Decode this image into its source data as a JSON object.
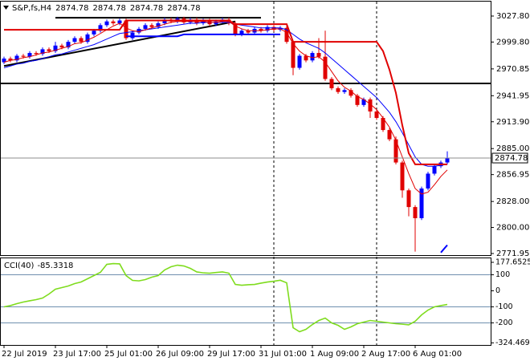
{
  "chart_data": [
    {
      "type": "candlestick",
      "title": "S&P,fs,H4",
      "quote": [
        2874.78,
        2874.78,
        2874.78,
        2874.78
      ],
      "categories": [
        "22 Jul 2019",
        null,
        null,
        null,
        null,
        null,
        null,
        null,
        "23 Jul 17:00",
        null,
        null,
        null,
        null,
        null,
        null,
        null,
        "25 Jul 01:00",
        null,
        null,
        null,
        null,
        null,
        null,
        null,
        "26 Jul 09:00",
        null,
        null,
        null,
        null,
        null,
        null,
        null,
        "29 Jul 17:00",
        null,
        null,
        null,
        null,
        null,
        null,
        null,
        "31 Jul 01:00",
        null,
        null,
        null,
        null,
        null,
        null,
        null,
        "1 Aug 09:00",
        null,
        null,
        null,
        null,
        null,
        null,
        null,
        "2 Aug 17:00",
        null,
        null,
        null,
        null,
        null,
        null,
        null,
        "6 Aug 01:00",
        null,
        null,
        null,
        null,
        null
      ],
      "open": [
        2978,
        2982,
        2980,
        2985,
        2984,
        2988,
        2987,
        2992,
        2990,
        2996,
        2994,
        3000,
        3004,
        3000,
        3008,
        3012,
        3018,
        3022,
        3020,
        3023,
        3004,
        3010,
        3014,
        3018,
        3016,
        3020,
        3024,
        3022,
        3025,
        3021,
        3024,
        3020,
        3023,
        3019,
        3022,
        3024,
        3020,
        3008,
        3012,
        3010,
        3014,
        3012,
        3016,
        3013,
        3015,
        3000,
        2972,
        2985,
        2980,
        2988,
        2984,
        2960,
        2950,
        2946,
        2948,
        2942,
        2932,
        2938,
        2925,
        2918,
        2905,
        2895,
        2870,
        2840,
        2822,
        2810,
        2842,
        2858,
        2866,
        2870
      ],
      "high": [
        2984,
        2984,
        2987,
        2987,
        2990,
        2990,
        2994,
        2994,
        3000,
        2998,
        3002,
        3006,
        3006,
        3010,
        3014,
        3020,
        3024,
        3024,
        3025,
        3025,
        3012,
        3016,
        3020,
        3020,
        3022,
        3026,
        3026,
        3027,
        3027,
        3026,
        3026,
        3025,
        3025,
        3024,
        3026,
        3026,
        3022,
        3014,
        3014,
        3016,
        3016,
        3018,
        3018,
        3017,
        3017,
        3002,
        2987,
        2987,
        2990,
        3004,
        3012,
        2962,
        2952,
        2950,
        2950,
        2944,
        2940,
        2940,
        2927,
        2920,
        2907,
        2898,
        2872,
        2842,
        2824,
        2844,
        2860,
        2868,
        2872,
        2882
      ],
      "low": [
        2976,
        2978,
        2978,
        2982,
        2982,
        2985,
        2985,
        2988,
        2988,
        2992,
        2992,
        2998,
        2998,
        2998,
        3006,
        3010,
        3016,
        3018,
        3018,
        3002,
        3002,
        3008,
        3012,
        3014,
        3014,
        3018,
        3020,
        3020,
        3019,
        3019,
        3018,
        3018,
        3017,
        3017,
        3020,
        3018,
        3006,
        3006,
        3008,
        3008,
        3010,
        3010,
        3011,
        3011,
        2998,
        2964,
        2970,
        2978,
        2978,
        2982,
        2958,
        2948,
        2944,
        2944,
        2940,
        2930,
        2930,
        2918,
        2916,
        2903,
        2893,
        2868,
        2832,
        2812,
        2774,
        2808,
        2840,
        2856,
        2864,
        2868
      ],
      "close": [
        2982,
        2980,
        2985,
        2984,
        2988,
        2987,
        2992,
        2990,
        2996,
        2994,
        3000,
        3004,
        3000,
        3008,
        3012,
        3018,
        3022,
        3020,
        3023,
        3004,
        3010,
        3014,
        3018,
        3016,
        3020,
        3024,
        3022,
        3025,
        3021,
        3024,
        3020,
        3023,
        3019,
        3022,
        3024,
        3020,
        3008,
        3012,
        3010,
        3014,
        3012,
        3016,
        3013,
        3015,
        3000,
        2972,
        2985,
        2980,
        2988,
        2984,
        2960,
        2950,
        2946,
        2948,
        2942,
        2932,
        2938,
        2925,
        2918,
        2905,
        2895,
        2870,
        2840,
        2822,
        2810,
        2842,
        2858,
        2866,
        2870,
        2874.78
      ],
      "up_color": "#0000ff",
      "down_color": "#e00000",
      "lines": [
        {
          "color": "#0000ff",
          "width": 1,
          "values": [
            2972,
            2974,
            2976,
            2977,
            2979,
            2980,
            2982,
            2984,
            2986,
            2987,
            2989,
            2991,
            2993,
            2995,
            2997,
            3000,
            3003,
            3006,
            3009,
            3010,
            3011,
            3012,
            3013,
            3014,
            3015,
            3016,
            3017,
            3018,
            3019,
            3020,
            3020,
            3021,
            3021,
            3021,
            3021,
            3021,
            3019,
            3018,
            3017,
            3016,
            3015,
            3015,
            3015,
            3015,
            3013,
            3008,
            3003,
            2999,
            2996,
            2993,
            2988,
            2982,
            2976,
            2970,
            2964,
            2958,
            2952,
            2946,
            2940,
            2932,
            2924,
            2914,
            2902,
            2889,
            2876,
            2868,
            2866,
            2866,
            2867,
            2868
          ]
        },
        {
          "color": "#e00000",
          "width": 1,
          "values": [
            2978,
            2980,
            2981,
            2983,
            2984,
            2986,
            2988,
            2989,
            2991,
            2993,
            2995,
            2998,
            2999,
            3002,
            3005,
            3009,
            3013,
            3017,
            3020,
            3015,
            3012,
            3011,
            3013,
            3015,
            3017,
            3019,
            3021,
            3022,
            3022,
            3022,
            3022,
            3022,
            3021,
            3021,
            3022,
            3022,
            3017,
            3014,
            3012,
            3012,
            3012,
            3013,
            3014,
            3014,
            3010,
            2998,
            2990,
            2985,
            2983,
            2984,
            2978,
            2968,
            2958,
            2951,
            2947,
            2941,
            2938,
            2933,
            2927,
            2918,
            2908,
            2894,
            2876,
            2858,
            2842,
            2836,
            2838,
            2846,
            2855,
            2862
          ]
        },
        {
          "color": "#e00000",
          "width": 2,
          "values": [
            3013,
            3013,
            3013,
            3013,
            3013,
            3013,
            3013,
            3013,
            3013,
            3013,
            3013,
            3013,
            3013,
            3013,
            3013,
            3013,
            3013,
            3013,
            3013,
            3023,
            3023,
            3023,
            3023,
            3023,
            3023,
            3023,
            3023,
            3023,
            3023,
            3023,
            3023,
            3023,
            3023,
            3023,
            3023,
            3023,
            3019,
            3019,
            3019,
            3019,
            3019,
            3019,
            3019,
            3019,
            3019,
            3000,
            3000,
            3000,
            3000,
            3000,
            3000,
            3000,
            3000,
            3000,
            3000,
            3000,
            3000,
            3000,
            3000,
            2990,
            2970,
            2945,
            2910,
            2880,
            2868,
            2868,
            2868,
            2868,
            2868,
            2868
          ]
        },
        {
          "color": "#0000ff",
          "width": 2,
          "values": [
            null,
            null,
            null,
            null,
            null,
            null,
            null,
            null,
            null,
            null,
            null,
            null,
            null,
            null,
            null,
            null,
            null,
            null,
            null,
            3006,
            3006,
            3006,
            3006,
            3006,
            3006,
            3006,
            3006,
            3006,
            3008,
            3008,
            3008,
            3008,
            3008,
            3008,
            3008,
            3008,
            3008,
            3008,
            3008,
            3008,
            3008,
            3008,
            3008,
            3008,
            null,
            null,
            null,
            null,
            null,
            null,
            null,
            null,
            null,
            null,
            null,
            null,
            null,
            null,
            null,
            null,
            null,
            null,
            null,
            null,
            null,
            null,
            null,
            null,
            2773,
            2781
          ]
        }
      ],
      "trendlines": [
        {
          "x": [
            0,
            36
          ],
          "y": [
            2974,
            3022
          ]
        },
        {
          "x": [
            8,
            40
          ],
          "y": [
            3026,
            3026
          ]
        }
      ],
      "hlines": [
        2955.2
      ],
      "last_price": 2874.78,
      "ylim": [
        2771.95,
        3027.8
      ],
      "yticks": [
        {
          "value": 3027.8,
          "label": "3027.80"
        },
        {
          "value": 2999.8,
          "label": "2999.80"
        },
        {
          "value": 2970.85,
          "label": "2970.85"
        },
        {
          "value": 2941.95,
          "label": "2941.95"
        },
        {
          "value": 2913.9,
          "label": "2913.90"
        },
        {
          "value": 2885,
          "label": "2885.00"
        },
        {
          "value": 2856.95,
          "label": "2856.95"
        },
        {
          "value": 2828,
          "label": "2828.00"
        },
        {
          "value": 2800,
          "label": "2800.00"
        },
        {
          "value": 2771.95,
          "label": "2771.95"
        }
      ]
    },
    {
      "type": "line",
      "title": "CCI(40)",
      "color": "#7fdc1e",
      "values": [
        -100,
        -92,
        -80,
        -70,
        -62,
        -55,
        -45,
        -20,
        10,
        20,
        30,
        45,
        55,
        75,
        95,
        115,
        165,
        170,
        168,
        95,
        65,
        62,
        70,
        85,
        95,
        130,
        150,
        160,
        155,
        140,
        118,
        112,
        110,
        114,
        118,
        110,
        40,
        35,
        38,
        40,
        48,
        55,
        60,
        66,
        50,
        -230,
        -255,
        -240,
        -210,
        -185,
        -170,
        -200,
        -215,
        -240,
        -225,
        -205,
        -195,
        -185,
        -190,
        -195,
        -200,
        -205,
        -208,
        -212,
        -190,
        -150,
        -120,
        -100,
        -92,
        -85.3318
      ],
      "levels": [
        100,
        -100,
        -200
      ],
      "level_color": "#6f8faf",
      "ylim": [
        -324.4695,
        177.6525
      ],
      "yticks": [
        177.6525,
        100,
        0,
        -100,
        -200,
        -324.4695
      ]
    }
  ]
}
